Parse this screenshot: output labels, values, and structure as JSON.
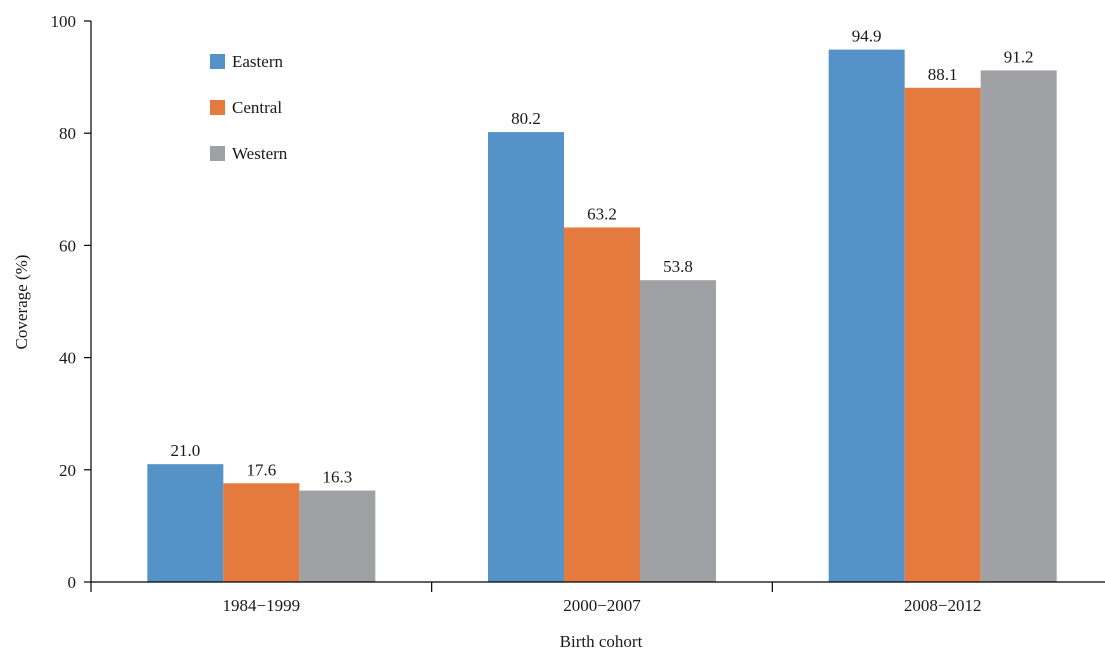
{
  "chart_data": {
    "type": "bar",
    "categories": [
      "1984−1999",
      "2000−2007",
      "2008−2012"
    ],
    "series": [
      {
        "name": "Eastern",
        "values": [
          21.0,
          80.2,
          94.9
        ],
        "labels": [
          "21.0",
          "80.2",
          "94.9"
        ],
        "color": "#5592c8"
      },
      {
        "name": "Central",
        "values": [
          17.6,
          63.2,
          88.1
        ],
        "labels": [
          "17.6",
          "63.2",
          "88.1"
        ],
        "color": "#e57a3f"
      },
      {
        "name": "Western",
        "values": [
          16.3,
          53.8,
          91.2
        ],
        "labels": [
          "16.3",
          "53.8",
          "91.2"
        ],
        "color": "#a0a1a4"
      }
    ],
    "xlabel": "Birth cohort",
    "ylabel": "Coverage (%)",
    "ylim": [
      0,
      100
    ],
    "yticks": [
      "0",
      "20",
      "40",
      "60",
      "80",
      "100"
    ],
    "grid": false,
    "legend_position": "top-left"
  }
}
